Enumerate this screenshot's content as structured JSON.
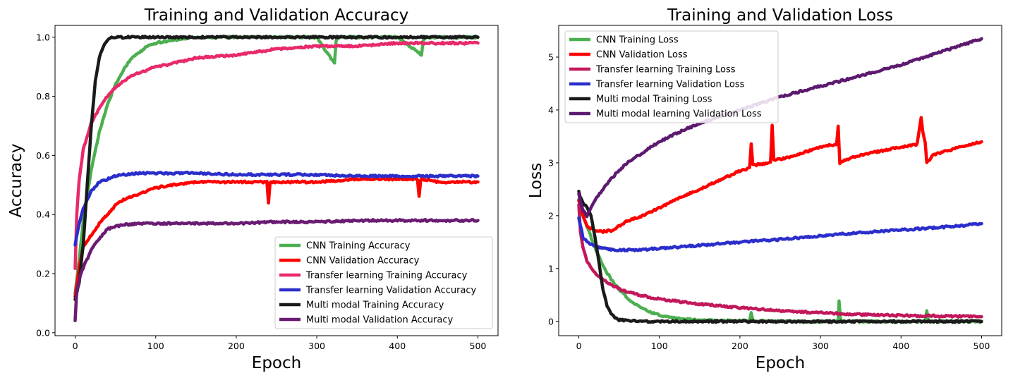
{
  "chart_data": [
    {
      "type": "line",
      "title": "Training and Validation Accuracy",
      "xlabel": "Epoch",
      "ylabel": "Accuracy",
      "xlim": [
        -25,
        525
      ],
      "ylim": [
        -0.01,
        1.04
      ],
      "xticks": [
        0,
        100,
        200,
        300,
        400,
        500
      ],
      "yticks": [
        0.0,
        0.2,
        0.4,
        0.6,
        0.8,
        1.0
      ],
      "xtick_labels": [
        "0",
        "100",
        "200",
        "300",
        "400",
        "500"
      ],
      "ytick_labels": [
        "0.0",
        "0.2",
        "0.4",
        "0.6",
        "0.8",
        "1.0"
      ],
      "grid": false,
      "legend_position": "lower-right",
      "series": [
        {
          "name": "CNN Training Accuracy",
          "color": "#4caf50",
          "x": [
            0,
            5,
            10,
            20,
            30,
            40,
            50,
            60,
            70,
            80,
            90,
            100,
            120,
            150,
            200,
            250,
            300,
            322,
            324,
            326,
            350,
            400,
            430,
            432,
            434,
            450,
            500
          ],
          "y": [
            0.13,
            0.25,
            0.38,
            0.55,
            0.68,
            0.77,
            0.84,
            0.89,
            0.93,
            0.95,
            0.97,
            0.98,
            0.99,
            1.0,
            1.0,
            1.0,
            1.0,
            0.91,
            0.99,
            1.0,
            1.0,
            1.0,
            0.94,
            0.99,
            1.0,
            1.0,
            1.0
          ]
        },
        {
          "name": "CNN Validation Accuracy",
          "color": "#ff0000",
          "x": [
            0,
            5,
            10,
            20,
            30,
            40,
            50,
            60,
            80,
            100,
            120,
            150,
            200,
            238,
            240,
            242,
            300,
            350,
            400,
            425,
            427,
            429,
            450,
            500
          ],
          "y": [
            0.12,
            0.22,
            0.29,
            0.33,
            0.37,
            0.4,
            0.43,
            0.45,
            0.47,
            0.49,
            0.5,
            0.51,
            0.51,
            0.51,
            0.44,
            0.51,
            0.51,
            0.52,
            0.52,
            0.52,
            0.46,
            0.52,
            0.51,
            0.51
          ]
        },
        {
          "name": "Transfer learning Training Accuracy",
          "color": "#e8296a",
          "x": [
            0,
            2,
            5,
            10,
            20,
            30,
            40,
            50,
            60,
            70,
            80,
            100,
            120,
            150,
            200,
            250,
            300,
            350,
            400,
            450,
            500
          ],
          "y": [
            0.22,
            0.4,
            0.52,
            0.62,
            0.71,
            0.76,
            0.8,
            0.83,
            0.85,
            0.87,
            0.88,
            0.9,
            0.91,
            0.93,
            0.94,
            0.96,
            0.97,
            0.97,
            0.98,
            0.98,
            0.98
          ]
        },
        {
          "name": "Transfer learning Validation Accuracy",
          "color": "#2b2ecb",
          "x": [
            0,
            5,
            10,
            20,
            30,
            40,
            50,
            60,
            80,
            100,
            150,
            200,
            250,
            300,
            350,
            400,
            450,
            500
          ],
          "y": [
            0.3,
            0.37,
            0.42,
            0.48,
            0.51,
            0.52,
            0.53,
            0.535,
            0.54,
            0.54,
            0.54,
            0.535,
            0.535,
            0.535,
            0.53,
            0.53,
            0.53,
            0.53
          ]
        },
        {
          "name": "Multi modal Training Accuracy",
          "color": "#1a1a1a",
          "x": [
            0,
            5,
            10,
            15,
            20,
            25,
            30,
            35,
            40,
            45,
            50,
            60,
            100,
            200,
            300,
            400,
            500
          ],
          "y": [
            0.11,
            0.17,
            0.3,
            0.5,
            0.7,
            0.85,
            0.93,
            0.97,
            0.99,
            1.0,
            1.0,
            1.0,
            1.0,
            1.0,
            1.0,
            1.0,
            1.0
          ]
        },
        {
          "name": "Multi modal Validation Accuracy",
          "color": "#6a1b72",
          "x": [
            0,
            2,
            5,
            10,
            20,
            30,
            40,
            50,
            60,
            80,
            100,
            150,
            200,
            250,
            300,
            350,
            400,
            450,
            500
          ],
          "y": [
            0.04,
            0.14,
            0.18,
            0.22,
            0.28,
            0.32,
            0.35,
            0.36,
            0.365,
            0.37,
            0.37,
            0.37,
            0.37,
            0.375,
            0.375,
            0.38,
            0.38,
            0.38,
            0.38
          ]
        }
      ]
    },
    {
      "type": "line",
      "title": "Training and Validation Loss",
      "xlabel": "Epoch",
      "ylabel": "Loss",
      "xlim": [
        -25,
        525
      ],
      "ylim": [
        -0.27,
        5.6
      ],
      "xticks": [
        0,
        100,
        200,
        300,
        400,
        500
      ],
      "yticks": [
        0,
        1,
        2,
        3,
        4,
        5
      ],
      "xtick_labels": [
        "0",
        "100",
        "200",
        "300",
        "400",
        "500"
      ],
      "ytick_labels": [
        "0",
        "1",
        "2",
        "3",
        "4",
        "5"
      ],
      "grid": false,
      "legend_position": "upper-left",
      "series": [
        {
          "name": "CNN Training Loss",
          "color": "#4caf50",
          "x": [
            0,
            5,
            10,
            20,
            30,
            40,
            50,
            60,
            70,
            80,
            90,
            100,
            120,
            150,
            200,
            212,
            214,
            216,
            250,
            300,
            322,
            323,
            325,
            350,
            400,
            430,
            432,
            434,
            450,
            500
          ],
          "y": [
            2.3,
            2.0,
            1.8,
            1.4,
            1.05,
            0.8,
            0.6,
            0.45,
            0.33,
            0.24,
            0.17,
            0.12,
            0.06,
            0.02,
            0.01,
            0.01,
            0.18,
            0.01,
            0.0,
            0.0,
            0.0,
            0.38,
            0.0,
            0.0,
            0.0,
            0.0,
            0.22,
            0.0,
            0.0,
            0.0
          ]
        },
        {
          "name": "CNN Validation Loss",
          "color": "#ff0000",
          "x": [
            0,
            5,
            10,
            20,
            30,
            40,
            50,
            60,
            80,
            100,
            120,
            150,
            200,
            212,
            214,
            216,
            238,
            240,
            242,
            260,
            300,
            320,
            322,
            324,
            330,
            350,
            400,
            420,
            425,
            427,
            430,
            432,
            440,
            450,
            500
          ],
          "y": [
            2.3,
            2.0,
            1.8,
            1.72,
            1.7,
            1.72,
            1.8,
            1.9,
            2.0,
            2.15,
            2.3,
            2.5,
            2.85,
            2.9,
            3.35,
            2.95,
            3.0,
            3.7,
            3.05,
            3.1,
            3.3,
            3.35,
            3.7,
            3.0,
            3.05,
            3.15,
            3.3,
            3.35,
            3.85,
            3.6,
            3.4,
            3.0,
            3.15,
            3.2,
            3.4
          ]
        },
        {
          "name": "Transfer learning Training Loss",
          "color": "#c2185b",
          "x": [
            0,
            2,
            5,
            10,
            20,
            30,
            40,
            50,
            60,
            80,
            100,
            150,
            200,
            250,
            300,
            350,
            400,
            450,
            500
          ],
          "y": [
            2.2,
            1.7,
            1.4,
            1.15,
            0.92,
            0.78,
            0.7,
            0.62,
            0.56,
            0.48,
            0.42,
            0.33,
            0.26,
            0.2,
            0.16,
            0.13,
            0.11,
            0.1,
            0.09
          ]
        },
        {
          "name": "Transfer learning Validation Loss",
          "color": "#2b2ecb",
          "x": [
            0,
            5,
            10,
            20,
            30,
            40,
            50,
            60,
            80,
            100,
            150,
            200,
            250,
            300,
            350,
            400,
            450,
            500
          ],
          "y": [
            1.95,
            1.6,
            1.5,
            1.42,
            1.38,
            1.36,
            1.35,
            1.35,
            1.36,
            1.38,
            1.44,
            1.5,
            1.55,
            1.62,
            1.68,
            1.73,
            1.78,
            1.85
          ]
        },
        {
          "name": "Multi modal Training Loss",
          "color": "#1a1a1a",
          "x": [
            0,
            3,
            5,
            10,
            15,
            20,
            25,
            30,
            35,
            40,
            45,
            50,
            60,
            80,
            100,
            200,
            300,
            400,
            500
          ],
          "y": [
            2.45,
            2.3,
            2.25,
            2.15,
            2.0,
            1.6,
            1.1,
            0.6,
            0.3,
            0.15,
            0.07,
            0.03,
            0.01,
            0.0,
            0.0,
            0.0,
            0.0,
            0.0,
            0.0
          ]
        },
        {
          "name": "Multi modal learning Validation Loss",
          "color": "#5c1a6e",
          "x": [
            0,
            5,
            10,
            15,
            20,
            30,
            40,
            50,
            60,
            80,
            100,
            120,
            150,
            200,
            250,
            300,
            350,
            400,
            450,
            500
          ],
          "y": [
            2.4,
            2.1,
            2.0,
            2.15,
            2.3,
            2.5,
            2.7,
            2.85,
            3.0,
            3.2,
            3.4,
            3.55,
            3.75,
            4.0,
            4.25,
            4.45,
            4.65,
            4.85,
            5.1,
            5.35
          ]
        }
      ]
    }
  ]
}
